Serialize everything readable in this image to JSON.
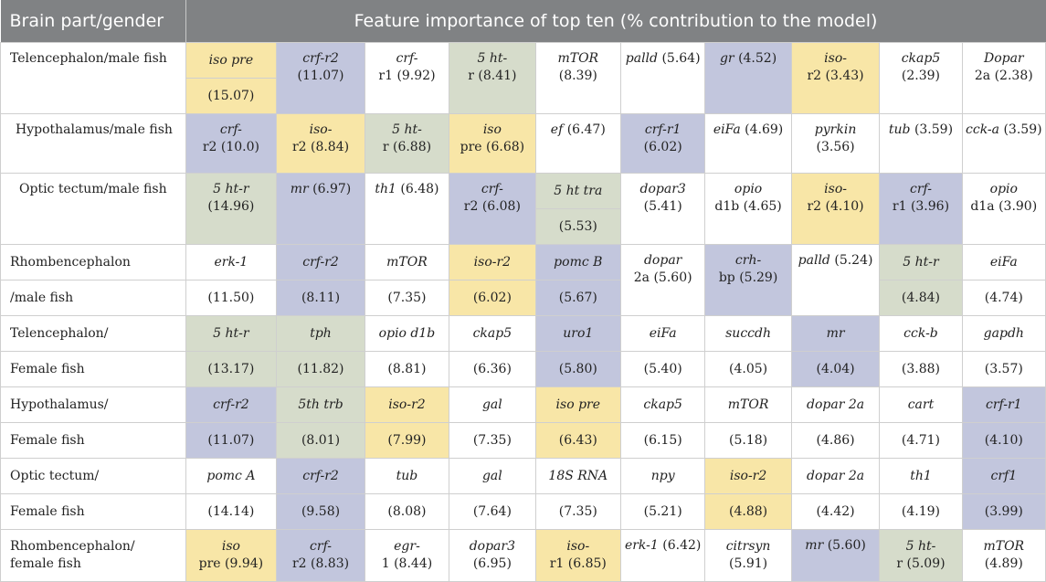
{
  "header": {
    "brain_part": "Brain part/gender",
    "features": "Feature importance of top ten (% contribution to the model)"
  },
  "rows": {
    "r1": {
      "part": "Telencephalon/male fish",
      "c": [
        {
          "g": "iso pre",
          "v": "(15.07)"
        },
        {
          "g": "crf-r2",
          "v": "(11.07)"
        },
        {
          "g": "crf-",
          "v": "r1 (9.92)"
        },
        {
          "g": "5 ht-",
          "v": "r (8.41)"
        },
        {
          "g": "mTOR",
          "v": "(8.39)"
        },
        {
          "g": "palld",
          "v": "(5.64)"
        },
        {
          "g": "gr",
          "v": "(4.52)"
        },
        {
          "g": "iso-",
          "v": "r2 (3.43)"
        },
        {
          "g": "ckap5",
          "v": "(2.39)"
        },
        {
          "g": "Dopar",
          "v": "2a (2.38)"
        }
      ]
    },
    "r2": {
      "part": "Hypothalamus/male fish",
      "c": [
        {
          "g": "crf-",
          "v": "r2 (10.0)"
        },
        {
          "g": "iso-",
          "v": "r2 (8.84)"
        },
        {
          "g": "5 ht-",
          "v": "r (6.88)"
        },
        {
          "g": "iso",
          "v": "pre (6.68)"
        },
        {
          "g": "ef",
          "v": "(6.47)"
        },
        {
          "g": "crf-r1",
          "v": "(6.02)"
        },
        {
          "g": "eiFa",
          "v": "(4.69)"
        },
        {
          "g": "pyrkin",
          "v": "(3.56)"
        },
        {
          "g": "tub",
          "v": "(3.59)"
        },
        {
          "g": "cck-a",
          "v": "(3.59)"
        }
      ]
    },
    "r3": {
      "part": "Optic tectum/male fish",
      "c": [
        {
          "g": "5 ht-r",
          "v": "(14.96)"
        },
        {
          "g": "mr",
          "v": "(6.97)"
        },
        {
          "g": "th1",
          "v": "(6.48)"
        },
        {
          "g": "crf-",
          "v": "r2 (6.08)"
        },
        {
          "g": "5 ht tra",
          "v": "(5.53)"
        },
        {
          "g": "dopar3",
          "v": "(5.41)"
        },
        {
          "g": "opio",
          "v": "d1b (4.65)"
        },
        {
          "g": "iso-",
          "v": "r2 (4.10)"
        },
        {
          "g": "crf-",
          "v": "r1 (3.96)"
        },
        {
          "g": "opio",
          "v": "d1a (3.90)"
        }
      ]
    },
    "r4": {
      "part1": "Rhombencephalon",
      "part2": "/male fish",
      "c": [
        {
          "g": "erk-1",
          "v": "(11.50)"
        },
        {
          "g": "crf-r2",
          "v": "(8.11)"
        },
        {
          "g": "mTOR",
          "v": "(7.35)"
        },
        {
          "g": "iso-r2",
          "v": "(6.02)"
        },
        {
          "g": "pomc B",
          "v": "(5.67)"
        },
        {
          "g": "dopar",
          "v": "2a (5.60)"
        },
        {
          "g": "crh-",
          "v": "bp (5.29)"
        },
        {
          "g": "palld",
          "v": "(5.24)"
        },
        {
          "g": "5 ht-r",
          "v": "(4.84)"
        },
        {
          "g": "eiFa",
          "v": "(4.74)"
        }
      ]
    },
    "r5": {
      "part1": "Telencephalon/",
      "part2": "Female fish",
      "c": [
        {
          "g": "5 ht-r",
          "v": "(13.17)"
        },
        {
          "g": "tph",
          "v": "(11.82)"
        },
        {
          "g": "opio d1b",
          "v": "(8.81)"
        },
        {
          "g": "ckap5",
          "v": "(6.36)"
        },
        {
          "g": "uro1",
          "v": "(5.80)"
        },
        {
          "g": "eiFa",
          "v": "(5.40)"
        },
        {
          "g": "succdh",
          "v": "(4.05)"
        },
        {
          "g": "mr",
          "v": "(4.04)"
        },
        {
          "g": "cck-b",
          "v": "(3.88)"
        },
        {
          "g": "gapdh",
          "v": "(3.57)"
        }
      ]
    },
    "r6": {
      "part1": "Hypothalamus/",
      "part2": "Female fish",
      "c": [
        {
          "g": "crf-r2",
          "v": "(11.07)"
        },
        {
          "g": "5th trb",
          "v": "(8.01)"
        },
        {
          "g": "iso-r2",
          "v": "(7.99)"
        },
        {
          "g": "gal",
          "v": "(7.35)"
        },
        {
          "g": "iso pre",
          "v": "(6.43)"
        },
        {
          "g": "ckap5",
          "v": "(6.15)"
        },
        {
          "g": "mTOR",
          "v": "(5.18)"
        },
        {
          "g": "dopar 2a",
          "v": "(4.86)"
        },
        {
          "g": "cart",
          "v": "(4.71)"
        },
        {
          "g": "crf-r1",
          "v": "(4.10)"
        }
      ]
    },
    "r7": {
      "part1": "Optic tectum/",
      "part2": "Female fish",
      "c": [
        {
          "g": "pomc A",
          "v": "(14.14)"
        },
        {
          "g": "crf-r2",
          "v": "(9.58)"
        },
        {
          "g": "tub",
          "v": "(8.08)"
        },
        {
          "g": "gal",
          "v": "(7.64)"
        },
        {
          "g": "18S RNA",
          "v": "(7.35)"
        },
        {
          "g": "npy",
          "v": "(5.21)"
        },
        {
          "g": "iso-r2",
          "v": "(4.88)"
        },
        {
          "g": "dopar 2a",
          "v": "(4.42)"
        },
        {
          "g": "th1",
          "v": "(4.19)"
        },
        {
          "g": "crf1",
          "v": "(3.99)"
        }
      ]
    },
    "r8": {
      "part1": "Rhombencephalon/",
      "part2": "female fish",
      "c": [
        {
          "g": "iso",
          "v": "pre (9.94)"
        },
        {
          "g": "crf-",
          "v": "r2 (8.83)"
        },
        {
          "g": "egr-",
          "v": "1 (8.44)"
        },
        {
          "g": "dopar3",
          "v": "(6.95)"
        },
        {
          "g": "iso-",
          "v": "r1 (6.85)"
        },
        {
          "g": "erk-1",
          "v": "(6.42)"
        },
        {
          "g": "citrsyn",
          "v": "(5.91)"
        },
        {
          "g": "mr",
          "v": "(5.60)"
        },
        {
          "g": "5 ht-",
          "v": "r (5.09)"
        },
        {
          "g": "mTOR",
          "v": "(4.89)"
        }
      ]
    }
  },
  "colors": {
    "header_bg": "#808284",
    "yellow_highlight": "#f8e6a7",
    "blue_highlight": "#c2c6dd",
    "green_highlight": "#d6dccb"
  }
}
